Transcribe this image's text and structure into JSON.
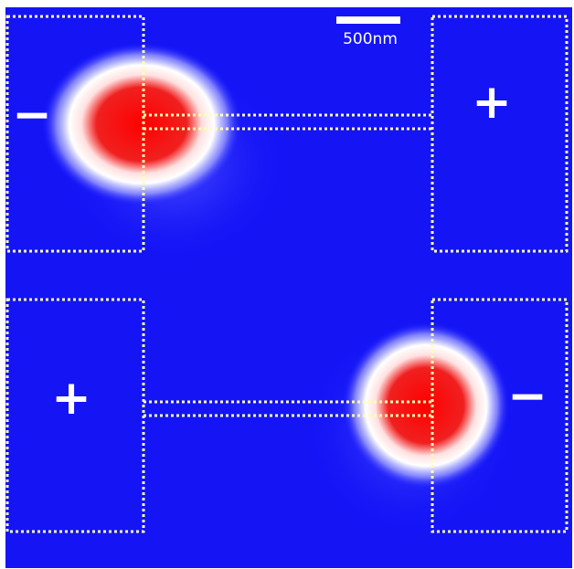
{
  "scale_bar": {
    "label": "500nm"
  },
  "panels": [
    {
      "left_sign": "−",
      "right_sign": "+"
    },
    {
      "left_sign": "+",
      "right_sign": "−"
    }
  ]
}
